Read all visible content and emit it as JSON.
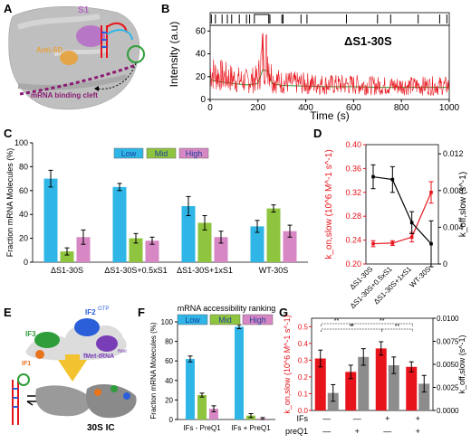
{
  "panels": {
    "A": {
      "letter": "A",
      "labels": {
        "s1": "S1",
        "anti_sd": "Anti-SD",
        "cleft": "mRNA binding cleft"
      },
      "colors": {
        "protein": "#bfbfbf",
        "s1": "#b565c8",
        "anti_sd": "#e8a23a",
        "cleft": "#8a1b73"
      }
    },
    "B": {
      "letter": "B",
      "annotation": "ΔS1-30S",
      "xlabel": "Time (s)",
      "ylabel": "Intensity (a.u)",
      "xticks": [
        "0",
        "200",
        "400",
        "600",
        "800",
        "1000"
      ],
      "yticks": [
        "0",
        "20",
        "40",
        "60"
      ],
      "colors": {
        "trace": "#e8141c",
        "fit": "#2e9e3a",
        "state": "#000000"
      }
    },
    "C": {
      "letter": "C"
    },
    "D": {
      "letter": "D"
    },
    "E": {
      "letter": "E",
      "labels": {
        "if3": "IF3",
        "if2": "IF2",
        "if2_sup": "GTP",
        "if1": "IF1",
        "fmet": "fMet-tRNA",
        "fmet_sup": "fMet",
        "ic": "30S IC"
      }
    },
    "F": {
      "letter": "F",
      "caption": "mRNA accessibility ranking"
    },
    "G": {
      "letter": "G"
    }
  },
  "chart_data": [
    {
      "id": "B",
      "type": "line",
      "title": "",
      "xlabel": "Time (s)",
      "ylabel": "Intensity (a.u)",
      "xlim": [
        0,
        1000
      ],
      "ylim": [
        0,
        65
      ],
      "series": [
        {
          "name": "",
          "x": [
            0,
            20,
            100,
            150,
            200,
            220,
            240,
            260,
            300,
            400,
            500,
            600,
            700,
            800,
            900,
            1000
          ],
          "y": [
            25,
            22,
            18,
            16,
            18,
            40,
            38,
            18,
            15,
            14,
            13,
            13,
            12,
            12,
            12,
            12
          ]
        }
      ],
      "state_segments": [
        {
          "start": 185,
          "end": 245,
          "level": "high"
        }
      ],
      "events_x": [
        5,
        22,
        50,
        72,
        90,
        122,
        152,
        165,
        250,
        300,
        305,
        380,
        405,
        570,
        700,
        755,
        870,
        960,
        990
      ]
    },
    {
      "id": "C",
      "type": "bar",
      "title": "",
      "xlabel": "",
      "ylabel": "Fraction mRNA Molecules (%)",
      "categories": [
        "ΔS1-30S",
        "ΔS1-30S+0.5xS1",
        "ΔS1-30S+1xS1",
        "WT-30S"
      ],
      "ylim": [
        0,
        100
      ],
      "yticks": [
        "0",
        "20",
        "40",
        "60",
        "80",
        "100"
      ],
      "legend": [
        "Low",
        "Mid",
        "High"
      ],
      "series": [
        {
          "name": "Low",
          "color": "#2fb6e7",
          "values": [
            70,
            63,
            47,
            30
          ],
          "errors": [
            7,
            3,
            8,
            5
          ]
        },
        {
          "name": "Mid",
          "color": "#8fc43e",
          "values": [
            9,
            20,
            33,
            45
          ],
          "errors": [
            3,
            4,
            6,
            3
          ]
        },
        {
          "name": "High",
          "color": "#d787c4",
          "values": [
            21,
            18,
            21,
            26
          ],
          "errors": [
            6,
            3,
            5,
            5
          ]
        }
      ]
    },
    {
      "id": "D",
      "type": "line",
      "title": "",
      "categories": [
        "ΔS1-30S",
        "ΔS1-30S+0.5xS1",
        "ΔS1-30S+1xS1",
        "WT-30S"
      ],
      "ylabel_left": "k_on,slow (10^6 M^-1 s^-1)",
      "ylabel_right": "k_off,slow (s^-1)",
      "ylim_left": [
        0.2,
        0.4
      ],
      "yticks_left": [
        "0.20",
        "0.24",
        "0.28",
        "0.32",
        "0.36",
        "0.40"
      ],
      "ylim_right": [
        0,
        0.013
      ],
      "yticks_right": [
        "0",
        "0.004",
        "0.008",
        "0.012"
      ],
      "series": [
        {
          "name": "k_on,slow",
          "axis": "left",
          "color": "#e8141c",
          "values": [
            0.234,
            0.235,
            0.245,
            0.32
          ],
          "errors": [
            0.005,
            0.004,
            0.008,
            0.018
          ]
        },
        {
          "name": "k_off,slow",
          "axis": "right",
          "color": "#000000",
          "values": [
            0.0095,
            0.0092,
            0.0045,
            0.0022
          ],
          "errors": [
            0.0013,
            0.0014,
            0.0012,
            0.0025
          ]
        }
      ]
    },
    {
      "id": "F",
      "type": "bar",
      "title": "",
      "ylabel": "Fraction mRNA Molecules (%)",
      "categories": [
        "IFs - PreQ1",
        "IFs + PreQ1"
      ],
      "ylim": [
        0,
        100
      ],
      "yticks": [
        "0",
        "20",
        "40",
        "60",
        "80",
        "100"
      ],
      "legend": [
        "Low",
        "Mid",
        "High"
      ],
      "series": [
        {
          "name": "Low",
          "color": "#2fb6e7",
          "values": [
            62,
            95
          ],
          "errors": [
            3,
            2
          ]
        },
        {
          "name": "Mid",
          "color": "#8fc43e",
          "values": [
            25,
            4
          ],
          "errors": [
            2,
            2
          ]
        },
        {
          "name": "High",
          "color": "#d787c4",
          "values": [
            11,
            1
          ],
          "errors": [
            3,
            1
          ]
        }
      ]
    },
    {
      "id": "G",
      "type": "bar",
      "title": "",
      "ylabel_left": "k_on,slow (10^6 M^-1 s^-1)",
      "ylabel_right": "k_off,slow (s^-1)",
      "ylim_left": [
        0,
        0.55
      ],
      "yticks_left": [
        "0.0",
        "0.1",
        "0.2",
        "0.3",
        "0.4",
        "0.5"
      ],
      "ylim_right": [
        0,
        0.01
      ],
      "yticks_right": [
        "0.0000",
        "0.0025",
        "0.0050",
        "0.0075",
        "0.0100"
      ],
      "conditions": [
        {
          "ifs": "—",
          "preq": "—"
        },
        {
          "ifs": "—",
          "preq": "+"
        },
        {
          "ifs": "+",
          "preq": "—"
        },
        {
          "ifs": "+",
          "preq": "+"
        }
      ],
      "row_labels": {
        "ifs": "IFs",
        "preq": "preQ1"
      },
      "series": [
        {
          "name": "k_on,slow",
          "axis": "left",
          "color": "#e8141c",
          "values": [
            0.31,
            0.23,
            0.37,
            0.26
          ],
          "errors": [
            0.05,
            0.04,
            0.04,
            0.03
          ]
        },
        {
          "name": "k_off,slow",
          "axis": "right",
          "color": "#8c8c8c",
          "values": [
            0.0019,
            0.0058,
            0.0049,
            0.0029
          ],
          "errors": [
            0.0009,
            0.0009,
            0.0009,
            0.0009
          ]
        }
      ],
      "significance": [
        "**",
        "**",
        "**",
        "**"
      ]
    }
  ]
}
